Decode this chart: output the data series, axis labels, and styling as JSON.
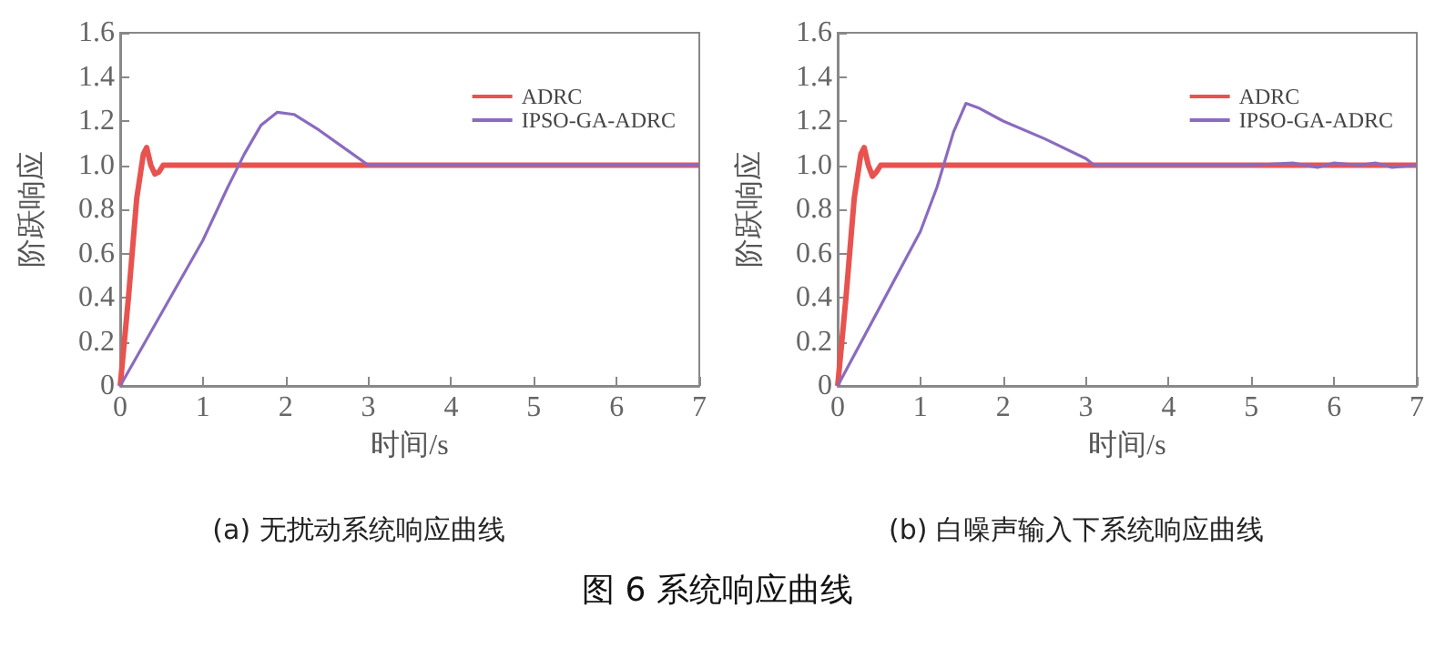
{
  "chart_data": [
    {
      "type": "line",
      "title": "(a)  无扰动系统响应曲线",
      "xlabel": "时间/s",
      "ylabel": "阶跃响应",
      "annotations": [
        "图 6    系统响应曲线"
      ],
      "legend": "top right",
      "grid": false,
      "marker": "none",
      "line_style": "solid",
      "xlim": [
        0,
        7
      ],
      "xticks": [
        0,
        1,
        2,
        3,
        4,
        5,
        6,
        7
      ],
      "ylim": [
        0,
        1.6
      ],
      "yticks": [
        0,
        0.2,
        0.4,
        0.6,
        0.8,
        {
          "value": 1,
          "label": "1.0"
        },
        1.2,
        1.4,
        1.6
      ],
      "series": [
        {
          "name": "ADRC",
          "color": "#e8534f",
          "x": [
            0,
            0.1,
            0.2,
            0.28,
            0.32,
            0.37,
            0.42,
            0.47,
            0.52,
            7
          ],
          "values": [
            0,
            0.4,
            0.85,
            1.05,
            1.08,
            1.0,
            0.96,
            0.97,
            1.0,
            1.0
          ]
        },
        {
          "name": "IPSO-GA-ADRC",
          "color": "#8a6bbf",
          "x": [
            0,
            0.5,
            1,
            1.3,
            1.5,
            1.7,
            1.9,
            2.1,
            2.4,
            2.7,
            3,
            7
          ],
          "values": [
            0,
            0.33,
            0.66,
            0.9,
            1.05,
            1.18,
            1.24,
            1.23,
            1.16,
            1.08,
            1.0,
            1.0
          ]
        }
      ]
    },
    {
      "type": "line",
      "title": "(b)  白噪声输入下系统响应曲线",
      "xlabel": "时间/s",
      "ylabel": "阶跃响应",
      "legend": "top right",
      "grid": false,
      "marker": "none",
      "line_style": "solid",
      "xlim": [
        0,
        7
      ],
      "xticks": [
        0,
        1,
        2,
        3,
        4,
        5,
        6,
        7
      ],
      "ylim": [
        0,
        1.6
      ],
      "yticks": [
        0,
        0.2,
        0.4,
        0.6,
        0.8,
        {
          "value": 1,
          "label": "1.0"
        },
        1.2,
        1.4,
        1.6
      ],
      "series": [
        {
          "name": "ADRC",
          "color": "#e8534f",
          "x": [
            0,
            0.1,
            0.2,
            0.28,
            0.32,
            0.37,
            0.42,
            0.47,
            0.52,
            7
          ],
          "values": [
            0,
            0.4,
            0.85,
            1.05,
            1.08,
            1.0,
            0.95,
            0.97,
            1.0,
            1.0
          ]
        },
        {
          "name": "IPSO-GA-ADRC",
          "color": "#8a6bbf",
          "x": [
            0,
            0.5,
            1,
            1.2,
            1.4,
            1.55,
            1.7,
            2,
            2.5,
            3,
            3.1,
            3.5,
            4,
            4.5,
            5,
            5.5,
            5.8,
            6,
            6.3,
            6.5,
            6.7,
            7
          ],
          "values": [
            0,
            0.35,
            0.7,
            0.9,
            1.15,
            1.28,
            1.26,
            1.2,
            1.12,
            1.03,
            1.0,
            1.0,
            1.0,
            1.0,
            1.0,
            1.01,
            0.99,
            1.01,
            1.0,
            1.01,
            0.99,
            1.0
          ]
        }
      ]
    }
  ]
}
